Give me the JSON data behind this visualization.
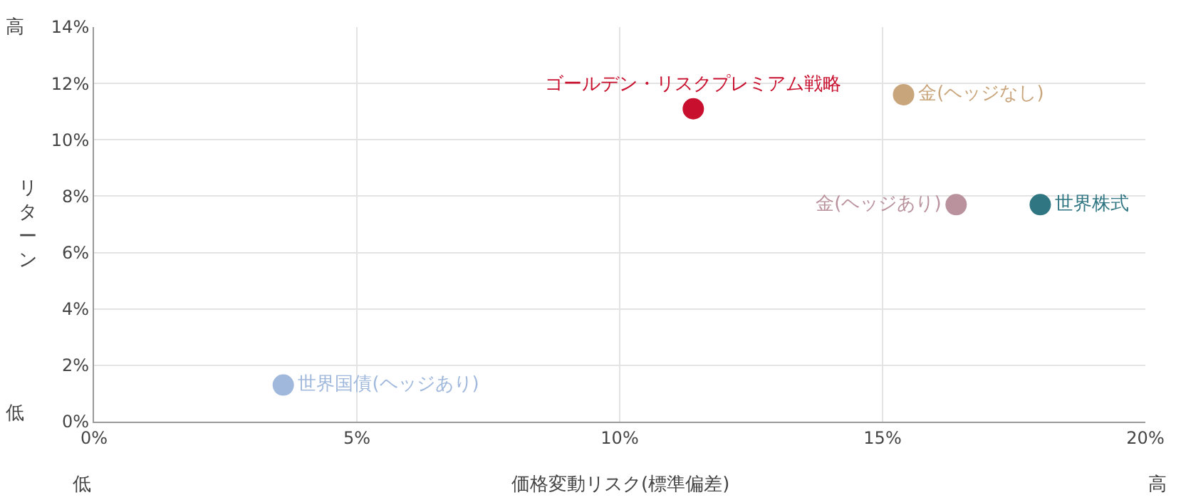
{
  "chart_data": {
    "type": "scatter",
    "xlabel": "価格変動リスク(標準偏差)",
    "ylabel": "リターン",
    "annotations": [
      "高",
      "低",
      "低",
      "高"
    ],
    "series": [
      {
        "name": "ゴールデン・リスクプレミアム戦略",
        "color": "#c8102e",
        "x": [
          11.4
        ],
        "values": [
          11.1
        ]
      },
      {
        "name": "金(ヘッジなし)",
        "color": "#c9a57c",
        "x": [
          15.4
        ],
        "values": [
          11.6
        ]
      },
      {
        "name": "金(ヘッジあり)",
        "color": "#b9929d",
        "x": [
          16.4
        ],
        "values": [
          7.7
        ]
      },
      {
        "name": "世界株式",
        "color": "#2f7582",
        "x": [
          18.0
        ],
        "values": [
          7.7
        ]
      },
      {
        "name": "世界国債(ヘッジあり)",
        "color": "#9fb8dc",
        "x": [
          3.6
        ],
        "values": [
          1.3
        ]
      }
    ],
    "xlim": [
      0,
      20
    ],
    "xticks": [
      {
        "value": 0,
        "label": "0%"
      },
      {
        "value": 5,
        "label": "5%"
      },
      {
        "value": 10,
        "label": "10%"
      },
      {
        "value": 15,
        "label": "15%"
      },
      {
        "value": 20,
        "label": "20%"
      }
    ],
    "ylim": [
      0,
      14
    ],
    "yticks": [
      {
        "value": 0,
        "label": "0%"
      },
      {
        "value": 2,
        "label": "2%"
      },
      {
        "value": 4,
        "label": "4%"
      },
      {
        "value": 6,
        "label": "6%"
      },
      {
        "value": 8,
        "label": "8%"
      },
      {
        "value": 10,
        "label": "10%"
      },
      {
        "value": 12,
        "label": "12%"
      },
      {
        "value": 14,
        "label": "14%"
      }
    ],
    "grid": true,
    "legend": false,
    "marker": "circle"
  }
}
